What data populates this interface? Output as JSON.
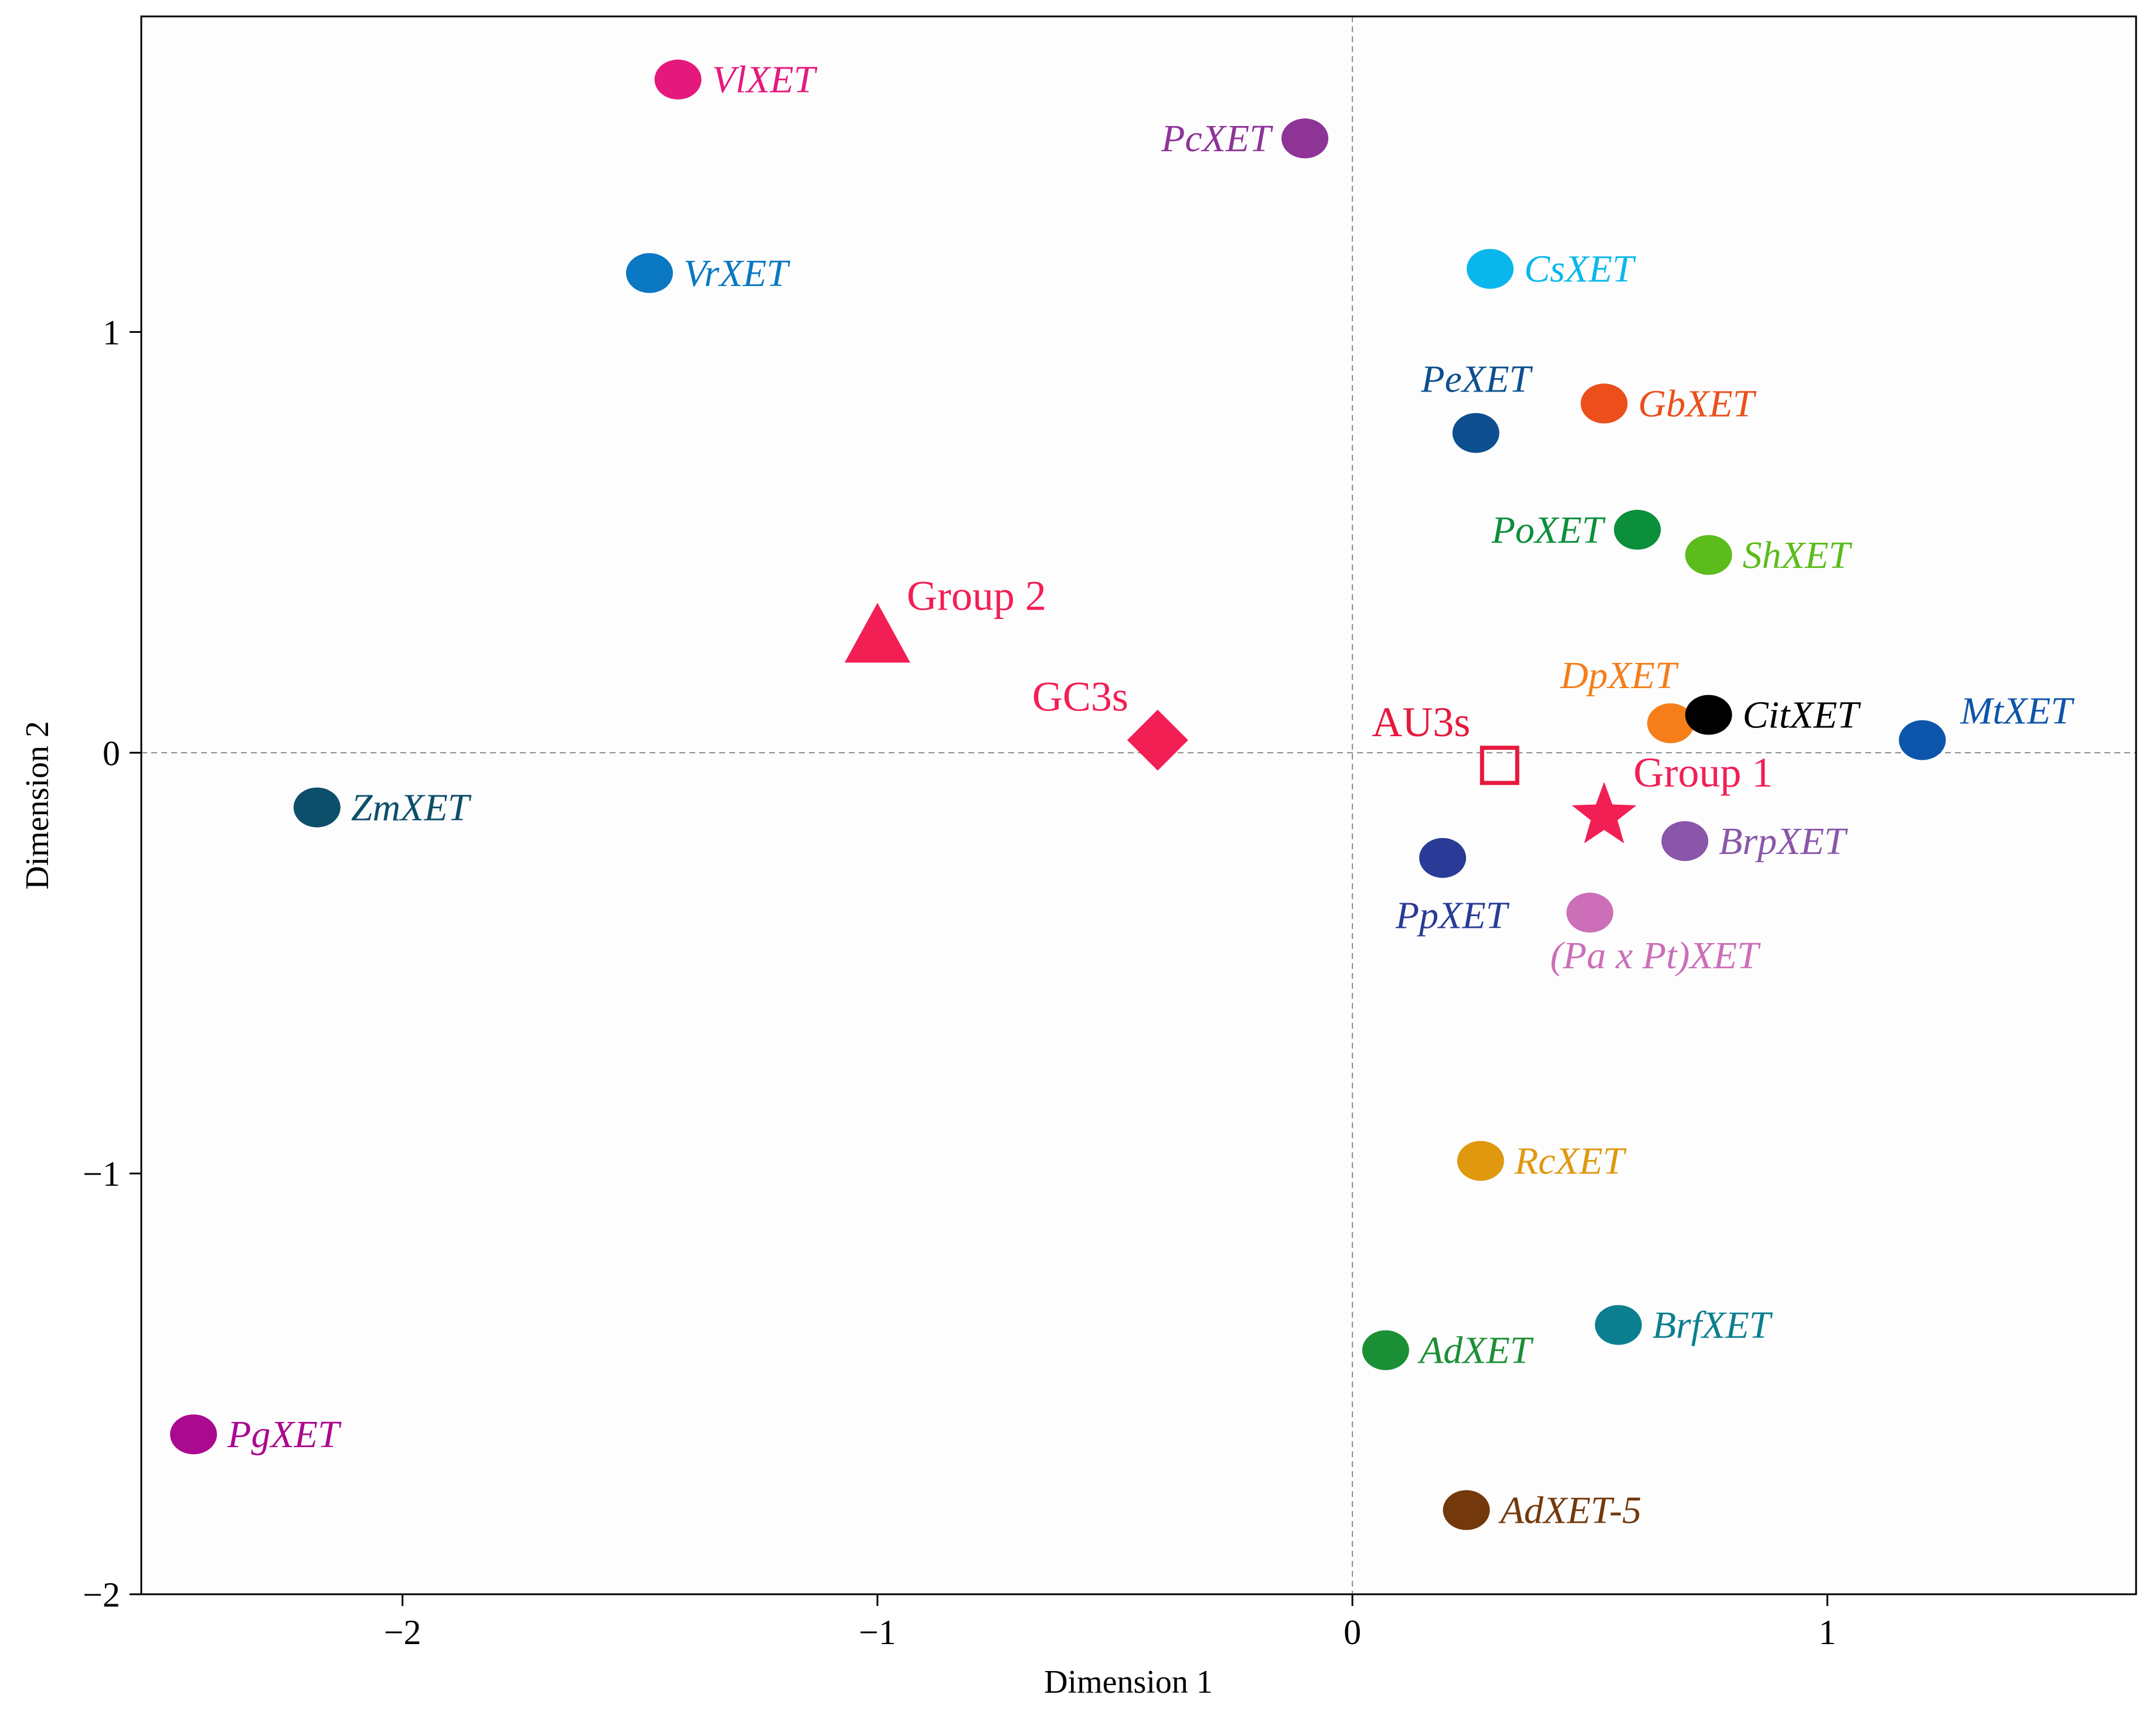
{
  "chart_data": {
    "type": "scatter",
    "xlabel": "Dimension 1",
    "ylabel": "Dimension 2",
    "xlim": [
      -2.55,
      1.65
    ],
    "ylim": [
      -2.0,
      1.75
    ],
    "xticks": [
      -2,
      -1,
      0,
      1
    ],
    "xtick_labels": [
      "−2",
      "−1",
      "0",
      "1"
    ],
    "yticks": [
      -2,
      -1,
      0,
      1
    ],
    "ytick_labels": [
      "−2",
      "−1",
      "0",
      "1"
    ],
    "reference_lines": {
      "x": 0,
      "y": 0,
      "style": "dashed"
    },
    "points": [
      {
        "label": "VlXET",
        "x": -1.42,
        "y": 1.6,
        "color": "#e5197d",
        "anchor": "right"
      },
      {
        "label": "PcXET",
        "x": -0.1,
        "y": 1.46,
        "color": "#8e3497",
        "anchor": "left"
      },
      {
        "label": "VrXET",
        "x": -1.48,
        "y": 1.14,
        "color": "#0a78c2",
        "anchor": "right"
      },
      {
        "label": "CsXET",
        "x": 0.29,
        "y": 1.15,
        "color": "#0ab7ec",
        "anchor": "right"
      },
      {
        "label": "PeXET",
        "x": 0.26,
        "y": 0.76,
        "color": "#0d4f8f",
        "anchor": "top"
      },
      {
        "label": "GbXET",
        "x": 0.53,
        "y": 0.83,
        "color": "#ec4f1b",
        "anchor": "right"
      },
      {
        "label": "PoXET",
        "x": 0.6,
        "y": 0.53,
        "color": "#0b8f3b",
        "anchor": "left"
      },
      {
        "label": "ShXET",
        "x": 0.75,
        "y": 0.47,
        "color": "#5bbc1b",
        "anchor": "right"
      },
      {
        "label": "DpXET",
        "x": 0.67,
        "y": 0.07,
        "color": "#f57e1b",
        "anchor": "topleft"
      },
      {
        "label": "CitXET",
        "x": 0.75,
        "y": 0.09,
        "color": "#000000",
        "anchor": "right"
      },
      {
        "label": "MtXET",
        "x": 1.2,
        "y": 0.03,
        "color": "#0d55aa",
        "anchor": "topright"
      },
      {
        "label": "ZmXET",
        "x": -2.18,
        "y": -0.13,
        "color": "#0d4e6a",
        "anchor": "right"
      },
      {
        "label": "BrpXET",
        "x": 0.7,
        "y": -0.21,
        "color": "#8a56aa",
        "anchor": "right"
      },
      {
        "label": "PpXET",
        "x": 0.19,
        "y": -0.25,
        "color": "#293b96",
        "anchor": "below"
      },
      {
        "label": "(Pa x Pt)XET",
        "x": 0.5,
        "y": -0.38,
        "color": "#cc6eb8",
        "anchor": "belowright"
      },
      {
        "label": "RcXET",
        "x": 0.27,
        "y": -0.97,
        "color": "#e0980e",
        "anchor": "right"
      },
      {
        "label": "BrfXET",
        "x": 0.56,
        "y": -1.36,
        "color": "#0b7f8f",
        "anchor": "right"
      },
      {
        "label": "AdXET",
        "x": 0.07,
        "y": -1.42,
        "color": "#1b8f35",
        "anchor": "right"
      },
      {
        "label": "PgXET",
        "x": -2.44,
        "y": -1.62,
        "color": "#aa0a8f",
        "anchor": "right"
      },
      {
        "label": "AdXET-5",
        "x": 0.24,
        "y": -1.8,
        "color": "#73380b",
        "anchor": "right"
      }
    ],
    "variables": [
      {
        "label": "Group 2",
        "x": -1.0,
        "y": 0.27,
        "marker": "triangle",
        "color": "#f21f55",
        "anchor": "topright"
      },
      {
        "label": "GC3s",
        "x": -0.41,
        "y": 0.03,
        "marker": "diamond",
        "color": "#f21f55",
        "anchor": "topleft"
      },
      {
        "label": "AU3s",
        "x": 0.31,
        "y": -0.03,
        "marker": "open-square",
        "color": "#e5193c",
        "anchor": "topleft"
      },
      {
        "label": "Group 1",
        "x": 0.53,
        "y": -0.15,
        "marker": "star",
        "color": "#f21f55",
        "anchor": "topright"
      }
    ]
  }
}
